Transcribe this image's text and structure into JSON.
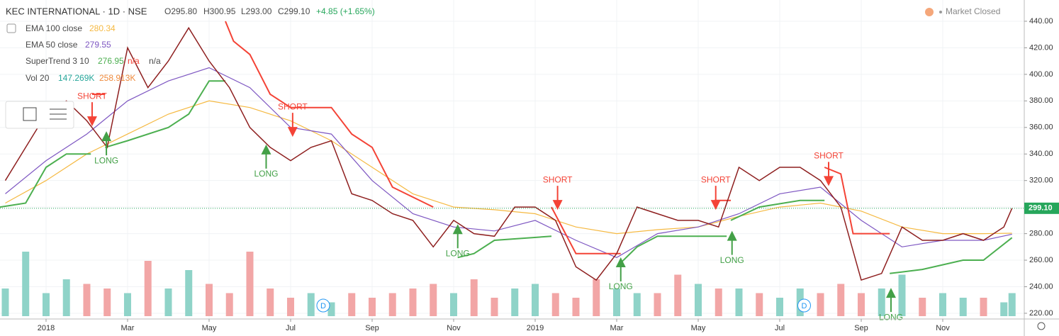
{
  "chart_data": {
    "type": "line",
    "title": "KEC INTERNATIONAL · 1D · NSE",
    "quote": [
      "O295.80",
      "H300.95",
      "L293.00",
      "C299.10",
      "+4.85 (+1.65%)"
    ],
    "status": "Market Closed",
    "xlim": [
      -1.13,
      24.0
    ],
    "ylim": [
      215.7,
      456
    ],
    "grid": true,
    "xticks": [
      {
        "value": 0,
        "label": "2018"
      },
      {
        "value": 2,
        "label": "Mar"
      },
      {
        "value": 4,
        "label": "May"
      },
      {
        "value": 6,
        "label": "Jul"
      },
      {
        "value": 8,
        "label": "Sep"
      },
      {
        "value": 10,
        "label": "Nov"
      },
      {
        "value": 12,
        "label": "2019"
      },
      {
        "value": 14,
        "label": "Mar"
      },
      {
        "value": 16,
        "label": "May"
      },
      {
        "value": 18,
        "label": "Jul"
      },
      {
        "value": 20,
        "label": "Sep"
      },
      {
        "value": 22,
        "label": "Nov"
      }
    ],
    "yticks": [
      {
        "value": 220,
        "label": "220.00"
      },
      {
        "value": 240,
        "label": "240.00"
      },
      {
        "value": 260,
        "label": "260.00"
      },
      {
        "value": 280,
        "label": "280.00"
      },
      {
        "value": 300,
        "label": "300.00"
      },
      {
        "value": 320,
        "label": "320.00"
      },
      {
        "value": 340,
        "label": "340.00"
      },
      {
        "value": 360,
        "label": "360.00"
      },
      {
        "value": 380,
        "label": "380.00"
      },
      {
        "value": 400,
        "label": "400.00"
      },
      {
        "value": 420,
        "label": "420.00"
      },
      {
        "value": 440,
        "label": "440.00"
      }
    ],
    "close": {
      "color": "#8e1f1f",
      "x": [
        -1,
        -0.5,
        0,
        0.5,
        1,
        1.5,
        2,
        2.5,
        3,
        3.5,
        4,
        4.5,
        5,
        5.5,
        6,
        6.5,
        7,
        7.5,
        8,
        8.5,
        9,
        9.5,
        10,
        10.5,
        11,
        11.5,
        12,
        12.5,
        13,
        13.5,
        14,
        14.5,
        15,
        15.5,
        16,
        16.5,
        17,
        17.5,
        18,
        18.5,
        19,
        19.5,
        20,
        20.5,
        21,
        21.5,
        22,
        22.5,
        23,
        23.5,
        23.7
      ],
      "values": [
        320,
        345,
        370,
        380,
        365,
        345,
        420,
        390,
        410,
        435,
        410,
        390,
        360,
        345,
        335,
        345,
        350,
        310,
        305,
        295,
        290,
        270,
        290,
        280,
        278,
        300,
        300,
        290,
        255,
        245,
        265,
        300,
        295,
        290,
        290,
        285,
        330,
        320,
        330,
        330,
        320,
        300,
        245,
        250,
        285,
        275,
        275,
        280,
        275,
        285,
        299.1
      ]
    },
    "last_price": {
      "value": 299.1,
      "label": "299.10",
      "color": "#26a65b"
    },
    "series": [
      {
        "name": "EMA 100 close",
        "color": "#f5b942",
        "legend_values": [
          "280.34"
        ],
        "x": [
          -1,
          0,
          1,
          2,
          3,
          4,
          5,
          6,
          7,
          8,
          9,
          10,
          11,
          12,
          13,
          14,
          15,
          16,
          17,
          18,
          19,
          20,
          21,
          22,
          23,
          23.7
        ],
        "values": [
          303,
          320,
          340,
          355,
          370,
          380,
          375,
          365,
          350,
          330,
          310,
          300,
          298,
          295,
          285,
          280,
          283,
          285,
          293,
          300,
          303,
          297,
          285,
          280,
          280,
          280.34
        ]
      },
      {
        "name": "EMA 50 close",
        "color": "#7e57c2",
        "legend_values": [
          "279.55"
        ],
        "x": [
          -1,
          0,
          1,
          2,
          3,
          4,
          5,
          6,
          7,
          8,
          9,
          10,
          11,
          12,
          13,
          14,
          15,
          16,
          17,
          18,
          19,
          20,
          21,
          22,
          23,
          23.7
        ],
        "values": [
          310,
          335,
          355,
          380,
          395,
          405,
          390,
          360,
          355,
          320,
          295,
          285,
          282,
          290,
          275,
          262,
          280,
          285,
          295,
          310,
          315,
          290,
          270,
          275,
          275,
          279.55
        ]
      },
      {
        "name": "SuperTrend 3 10",
        "legend_values": [
          "276.95",
          "n/a",
          "n/a"
        ],
        "segments": [
          {
            "color": "#4caf50",
            "x": [
              -1.13,
              -0.5,
              0,
              0.5,
              1.1
            ],
            "values": [
              300,
              303,
              330,
              340,
              340
            ]
          },
          {
            "color": "#f44336",
            "x": [
              1.13,
              1.45
            ],
            "values": [
              385,
              385
            ]
          },
          {
            "color": "#4caf50",
            "x": [
              1.45,
              2,
              3,
              3.5,
              4,
              4.4
            ],
            "values": [
              345,
              350,
              360,
              370,
              395,
              395
            ]
          },
          {
            "color": "#f44336",
            "x": [
              4.4,
              4.6,
              5,
              5.5,
              6,
              7,
              7.5,
              8,
              8.5,
              9.5
            ],
            "values": [
              440,
              425,
              415,
              385,
              375,
              375,
              355,
              345,
              315,
              300
            ]
          },
          {
            "color": "#4caf50",
            "x": [
              10.1,
              10.5,
              11,
              12.4
            ],
            "values": [
              262,
              265,
              275,
              278
            ]
          },
          {
            "color": "#f44336",
            "x": [
              12.4,
              13,
              14.1
            ],
            "values": [
              300,
              265,
              265
            ]
          },
          {
            "color": "#4caf50",
            "x": [
              14.1,
              14.5,
              15,
              16.7
            ],
            "values": [
              258,
              270,
              278,
              278
            ]
          },
          {
            "color": "#f44336",
            "x": [
              16.4,
              16.8
            ],
            "values": [
              305,
              305
            ]
          },
          {
            "color": "#4caf50",
            "x": [
              16.8,
              17.5,
              18.5,
              19.1
            ],
            "values": [
              290,
              300,
              305,
              305
            ]
          },
          {
            "color": "#f44336",
            "x": [
              19.1,
              19.5,
              19.8,
              20.7
            ],
            "values": [
              330,
              325,
              280,
              280
            ]
          },
          {
            "color": "#4caf50",
            "x": [
              20.7,
              21.5,
              22.5,
              23,
              23.7
            ],
            "values": [
              250,
              253,
              260,
              260,
              276.95
            ]
          }
        ]
      }
    ],
    "volume": {
      "name": "Vol 20",
      "legend_values": [
        "147.269K",
        "258.913K"
      ],
      "vlim": [
        0,
        1000
      ],
      "up_color": "#8fd3c8",
      "down_color": "#f2a6a6",
      "values": [
        300,
        700,
        250,
        400,
        350,
        300,
        250,
        600,
        300,
        500,
        350,
        250,
        700,
        300,
        200,
        250,
        150,
        250,
        200,
        250,
        300,
        350,
        250,
        400,
        200,
        300,
        350,
        250,
        200,
        400,
        300,
        250,
        250,
        450,
        350,
        300,
        300,
        250,
        200,
        300,
        250,
        350,
        250,
        300,
        450,
        200,
        250,
        200,
        200,
        150,
        250
      ]
    },
    "signals": [
      {
        "label": "SHORT",
        "x": 1.13,
        "price": 363
      },
      {
        "label": "LONG",
        "x": 1.48,
        "price": 355
      },
      {
        "label": "LONG",
        "x": 5.4,
        "price": 345
      },
      {
        "label": "SHORT",
        "x": 6.05,
        "price": 355
      },
      {
        "label": "LONG",
        "x": 10.1,
        "price": 285
      },
      {
        "label": "SHORT",
        "x": 12.55,
        "price": 300
      },
      {
        "label": "LONG",
        "x": 14.1,
        "price": 260
      },
      {
        "label": "SHORT",
        "x": 16.43,
        "price": 300
      },
      {
        "label": "LONG",
        "x": 16.83,
        "price": 280
      },
      {
        "label": "SHORT",
        "x": 19.2,
        "price": 318
      },
      {
        "label": "LONG",
        "x": 20.73,
        "price": 237
      }
    ],
    "events": [
      {
        "label": "D",
        "x": 6.8
      },
      {
        "label": "D",
        "x": 18.6
      }
    ]
  }
}
